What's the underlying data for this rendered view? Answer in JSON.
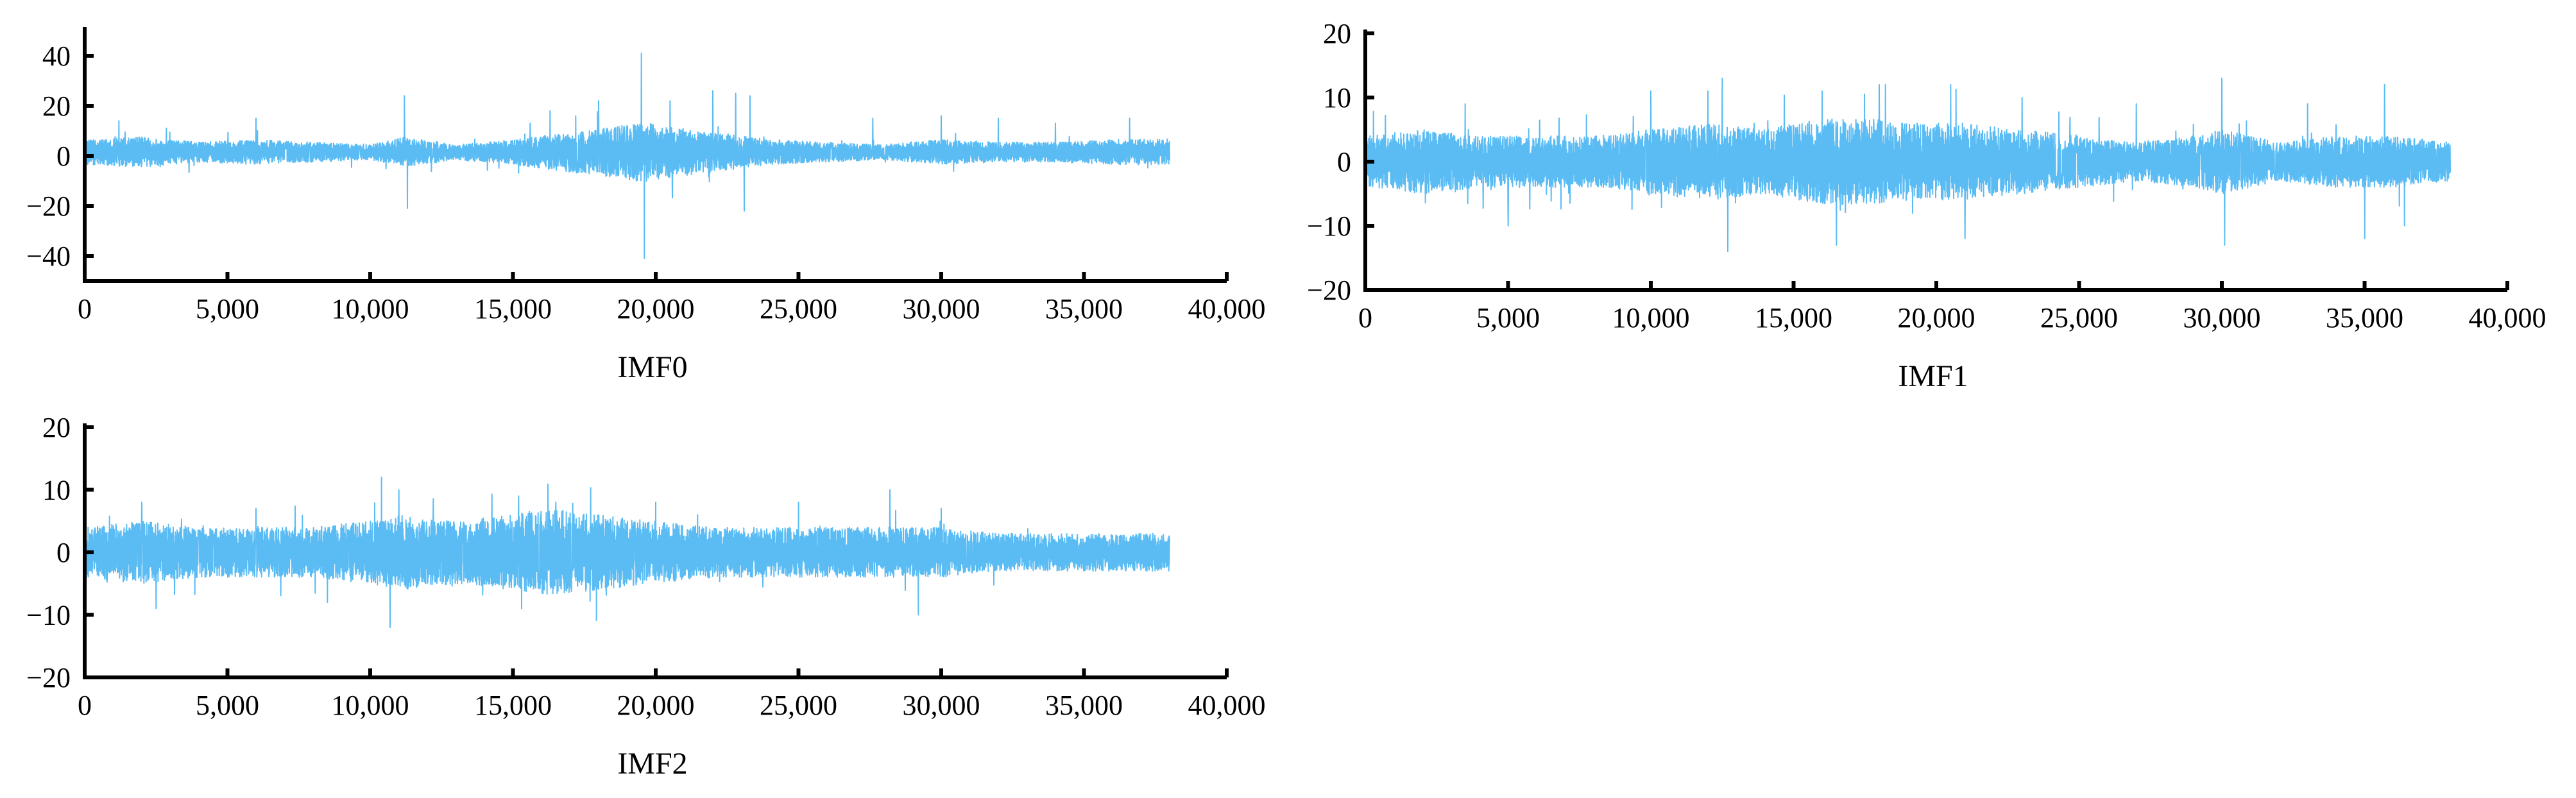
{
  "chart_data": [
    {
      "type": "line",
      "xlabel": "IMF0",
      "xlim": [
        0,
        40000
      ],
      "ylim": [
        -50,
        50
      ],
      "x_ticks": [
        0,
        5000,
        10000,
        15000,
        20000,
        25000,
        30000,
        35000,
        40000
      ],
      "x_tick_labels": [
        "0",
        "5,000",
        "10,000",
        "15,000",
        "20,000",
        "25,000",
        "30,000",
        "35,000",
        "40,000"
      ],
      "y_ticks": [
        -40,
        -20,
        0,
        20,
        40
      ],
      "y_tick_labels": [
        "−40",
        "−20",
        "0",
        "20",
        "40"
      ],
      "grid": false,
      "color": "#5bbcf4",
      "series": [
        {
          "x_range": [
            0,
            38000
          ],
          "baseline": 1.5,
          "amplitude_profile": [
            [
              0,
              5
            ],
            [
              2000,
              6
            ],
            [
              4000,
              4
            ],
            [
              6000,
              5
            ],
            [
              8000,
              4
            ],
            [
              10000,
              3
            ],
            [
              11200,
              6
            ],
            [
              13000,
              3
            ],
            [
              15000,
              5
            ],
            [
              17000,
              8
            ],
            [
              18500,
              10
            ],
            [
              19500,
              12
            ],
            [
              20500,
              10
            ],
            [
              22000,
              8
            ],
            [
              24000,
              5
            ],
            [
              26000,
              4
            ],
            [
              28000,
              3
            ],
            [
              30000,
              5
            ],
            [
              32000,
              4
            ],
            [
              34000,
              4
            ],
            [
              36000,
              5
            ],
            [
              38000,
              5
            ]
          ],
          "peaks": [
            [
              1200,
              14
            ],
            [
              6000,
              15
            ],
            [
              11200,
              24
            ],
            [
              11300,
              -21
            ],
            [
              15600,
              13
            ],
            [
              16300,
              18
            ],
            [
              17200,
              16
            ],
            [
              18000,
              22
            ],
            [
              19500,
              41
            ],
            [
              19600,
              -41
            ],
            [
              20500,
              22
            ],
            [
              22000,
              26
            ],
            [
              22800,
              25
            ],
            [
              23100,
              -22
            ],
            [
              23300,
              24
            ],
            [
              27600,
              15
            ],
            [
              30000,
              16
            ],
            [
              32000,
              15
            ],
            [
              34000,
              13
            ],
            [
              36600,
              15
            ]
          ]
        }
      ]
    },
    {
      "type": "line",
      "xlabel": "IMF1",
      "xlim": [
        0,
        40000
      ],
      "ylim": [
        -20,
        20
      ],
      "x_ticks": [
        0,
        5000,
        10000,
        15000,
        20000,
        25000,
        30000,
        35000,
        40000
      ],
      "x_tick_labels": [
        "0",
        "5,000",
        "10,000",
        "15,000",
        "20,000",
        "25,000",
        "30,000",
        "35,000",
        "40,000"
      ],
      "y_ticks": [
        -20,
        -10,
        0,
        10,
        20
      ],
      "y_tick_labels": [
        "−20",
        "−10",
        "0",
        "10",
        "20"
      ],
      "grid": false,
      "color": "#5bbcf4",
      "series": [
        {
          "x_range": [
            0,
            38000
          ],
          "baseline": 0,
          "amplitude_profile": [
            [
              0,
              4
            ],
            [
              2000,
              5
            ],
            [
              4000,
              4
            ],
            [
              6000,
              4
            ],
            [
              8000,
              4
            ],
            [
              10000,
              5
            ],
            [
              12000,
              6
            ],
            [
              14000,
              5
            ],
            [
              15000,
              6
            ],
            [
              17000,
              7
            ],
            [
              19000,
              6
            ],
            [
              21000,
              6
            ],
            [
              23000,
              5
            ],
            [
              25000,
              4
            ],
            [
              27000,
              3
            ],
            [
              29000,
              4
            ],
            [
              30000,
              5
            ],
            [
              32000,
              3
            ],
            [
              34000,
              4
            ],
            [
              36000,
              4
            ],
            [
              38000,
              3
            ]
          ],
          "peaks": [
            [
              3500,
              9
            ],
            [
              5000,
              -10
            ],
            [
              10000,
              11
            ],
            [
              12000,
              11
            ],
            [
              12500,
              13
            ],
            [
              12700,
              -14
            ],
            [
              16000,
              11
            ],
            [
              16500,
              -13
            ],
            [
              18000,
              12
            ],
            [
              20500,
              12
            ],
            [
              21000,
              -12
            ],
            [
              23000,
              10
            ],
            [
              27000,
              9
            ],
            [
              30000,
              13
            ],
            [
              30100,
              -13
            ],
            [
              33000,
              9
            ],
            [
              35000,
              -12
            ],
            [
              35700,
              12
            ],
            [
              36400,
              -10
            ]
          ]
        }
      ]
    },
    {
      "type": "line",
      "xlabel": "IMF2",
      "xlim": [
        0,
        40000
      ],
      "ylim": [
        -20,
        20
      ],
      "x_ticks": [
        0,
        5000,
        10000,
        15000,
        20000,
        25000,
        30000,
        35000,
        40000
      ],
      "x_tick_labels": [
        "0",
        "5,000",
        "10,000",
        "15,000",
        "20,000",
        "25,000",
        "30,000",
        "35,000",
        "40,000"
      ],
      "y_ticks": [
        -20,
        -10,
        0,
        10,
        20
      ],
      "y_tick_labels": [
        "−20",
        "−10",
        "0",
        "10",
        "20"
      ],
      "grid": false,
      "color": "#5bbcf4",
      "series": [
        {
          "x_range": [
            0,
            38000
          ],
          "baseline": 0,
          "amplitude_profile": [
            [
              0,
              4
            ],
            [
              2000,
              5
            ],
            [
              4000,
              4
            ],
            [
              6000,
              4
            ],
            [
              8000,
              4
            ],
            [
              10000,
              5
            ],
            [
              11000,
              6
            ],
            [
              13000,
              5
            ],
            [
              15000,
              6
            ],
            [
              16000,
              7
            ],
            [
              18000,
              6
            ],
            [
              20000,
              5
            ],
            [
              22000,
              4
            ],
            [
              24000,
              4
            ],
            [
              26000,
              4
            ],
            [
              28000,
              4
            ],
            [
              30000,
              4
            ],
            [
              32000,
              3
            ],
            [
              34000,
              3
            ],
            [
              36000,
              3
            ],
            [
              38000,
              3
            ]
          ],
          "peaks": [
            [
              2000,
              8
            ],
            [
              2500,
              -9
            ],
            [
              6000,
              7
            ],
            [
              8500,
              -8
            ],
            [
              10400,
              12
            ],
            [
              10700,
              -12
            ],
            [
              11000,
              10
            ],
            [
              15200,
              9
            ],
            [
              15300,
              -9
            ],
            [
              16500,
              8
            ],
            [
              20000,
              8
            ],
            [
              25000,
              8
            ],
            [
              28200,
              10
            ],
            [
              29200,
              -10
            ],
            [
              30000,
              7
            ]
          ]
        }
      ]
    }
  ]
}
